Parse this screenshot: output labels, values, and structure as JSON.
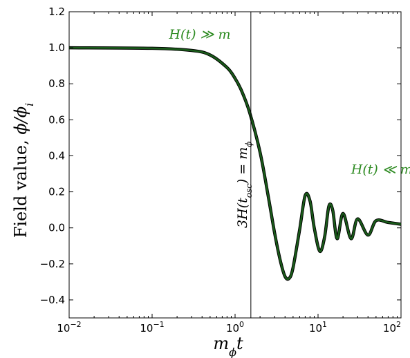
{
  "chart_data": {
    "type": "line",
    "xlabel": "m_ϕ t",
    "ylabel": "Field value, ϕ/ϕ_i",
    "xscale": "log",
    "xlim": [
      0.01,
      100
    ],
    "ylim": [
      -0.5,
      1.2
    ],
    "x_ticks": [
      0.01,
      0.1,
      1,
      10,
      100
    ],
    "x_tick_labels": [
      {
        "base": "10",
        "exp": "−2"
      },
      {
        "base": "10",
        "exp": "−1"
      },
      {
        "base": "10",
        "exp": "0"
      },
      {
        "base": "10",
        "exp": "1"
      },
      {
        "base": "10",
        "exp": "2"
      }
    ],
    "y_ticks": [
      -0.4,
      -0.2,
      0.0,
      0.2,
      0.4,
      0.6,
      0.8,
      1.0,
      1.2
    ],
    "y_tick_labels": [
      "−0.4",
      "−0.2",
      "0.0",
      "0.2",
      "0.4",
      "0.6",
      "0.8",
      "1.0",
      "1.2"
    ],
    "grid": false,
    "series": [
      {
        "color": "#1a5c1a",
        "x": [
          0.01,
          0.1,
          0.3,
          0.5,
          0.8,
          1.0,
          1.2,
          1.5,
          2.0,
          2.5,
          3.0,
          3.5,
          4.0,
          4.5,
          5.0,
          6.0,
          7.0,
          8.0,
          9.0,
          10.5,
          12.0,
          13.5,
          15.0,
          17.0,
          20.0,
          25.0,
          30.0,
          40.0,
          50.0,
          70.0,
          100.0
        ],
        "y": [
          1.0,
          0.997,
          0.985,
          0.96,
          0.89,
          0.83,
          0.76,
          0.64,
          0.42,
          0.18,
          -0.03,
          -0.18,
          -0.27,
          -0.28,
          -0.22,
          -0.01,
          0.18,
          0.15,
          0.0,
          -0.13,
          -0.05,
          0.12,
          0.1,
          -0.06,
          0.08,
          -0.06,
          0.05,
          -0.04,
          0.04,
          0.03,
          0.02
        ]
      }
    ],
    "vline": {
      "x": 1.55,
      "label": "3H(t_osc) = m_ϕ"
    },
    "annotations": [
      {
        "text": "H(t) ≫ m",
        "x": 0.16,
        "y": 1.05
      },
      {
        "text": "H(t) ≪ m",
        "x": 25,
        "y": 0.3
      }
    ]
  }
}
